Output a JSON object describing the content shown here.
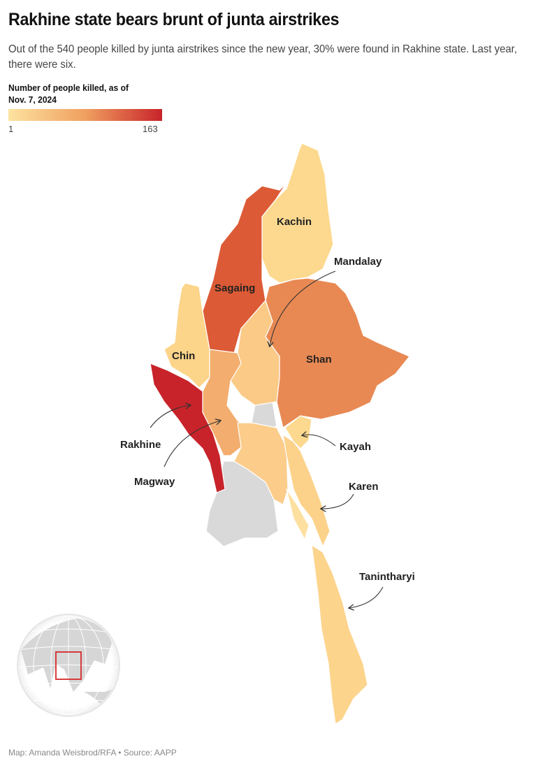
{
  "title": "Rakhine state bears brunt of junta airstrikes",
  "subtitle": "Out of the 540 people killed by junta airstrikes since the new year, 30% were found in Rakhine state. Last year, there were six.",
  "legend": {
    "title": "Number of people killed, as of Nov. 7, 2024",
    "min": "1",
    "max": "163",
    "color_low": "#fde3a0",
    "color_high": "#c8232a"
  },
  "no_data_color": "#d9d9d9",
  "regions": [
    {
      "name": "Kachin",
      "label": "Kachin",
      "color": "#fcd98f"
    },
    {
      "name": "Sagaing",
      "label": "Sagaing",
      "color": "#dc5a35"
    },
    {
      "name": "Chin",
      "label": "Chin",
      "color": "#fcd48a"
    },
    {
      "name": "Rakhine",
      "label": "Rakhine",
      "color": "#c8232a"
    },
    {
      "name": "Magway",
      "label": "Magway",
      "color": "#f3ad6e"
    },
    {
      "name": "Mandalay",
      "label": "Mandalay",
      "color": "#fbca87"
    },
    {
      "name": "Shan",
      "label": "Shan",
      "color": "#e88953"
    },
    {
      "name": "Kayah",
      "label": "Kayah",
      "color": "#fcd98f"
    },
    {
      "name": "Karen",
      "label": "Karen",
      "color": "#fcd28a"
    },
    {
      "name": "Tanintharyi",
      "label": "Tanintharyi",
      "color": "#fcd48c"
    }
  ],
  "inset": {
    "type": "globe-locator",
    "highlight_color": "#d42a2a"
  },
  "credit": "Map: Amanda Weisbrod/RFA • Source: AAPP"
}
